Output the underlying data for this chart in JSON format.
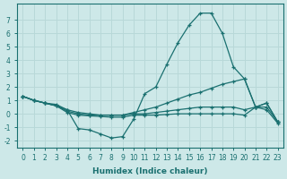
{
  "xlabel": "Humidex (Indice chaleur)",
  "bg_color": "#cde8e8",
  "grid_color": "#b8d8d8",
  "line_color": "#1a7070",
  "xlim": [
    -0.5,
    23.5
  ],
  "ylim": [
    -2.5,
    8.2
  ],
  "yticks": [
    -2,
    -1,
    0,
    1,
    2,
    3,
    4,
    5,
    6,
    7
  ],
  "xticks": [
    0,
    1,
    2,
    3,
    4,
    5,
    6,
    7,
    8,
    9,
    10,
    11,
    12,
    13,
    14,
    15,
    16,
    17,
    18,
    19,
    20,
    21,
    22,
    23
  ],
  "lines": [
    {
      "x": [
        0,
        1,
        2,
        3,
        4,
        5,
        6,
        7,
        8,
        9,
        10,
        11,
        12,
        13,
        14,
        15,
        16,
        17,
        18,
        19,
        20,
        21,
        22,
        23
      ],
      "y": [
        1.3,
        1.0,
        0.8,
        0.7,
        0.3,
        -1.1,
        -1.2,
        -1.5,
        -1.8,
        -1.7,
        -0.4,
        1.5,
        2.0,
        3.7,
        5.3,
        6.6,
        7.5,
        7.5,
        6.0,
        3.5,
        2.6,
        0.5,
        0.8,
        -0.6
      ]
    },
    {
      "x": [
        0,
        1,
        2,
        3,
        4,
        5,
        6,
        7,
        8,
        9,
        10,
        11,
        12,
        13,
        14,
        15,
        16,
        17,
        18,
        19,
        20,
        21,
        22,
        23
      ],
      "y": [
        1.3,
        1.0,
        0.8,
        0.6,
        0.3,
        0.1,
        0.0,
        -0.1,
        -0.1,
        -0.1,
        0.1,
        0.3,
        0.5,
        0.8,
        1.1,
        1.4,
        1.6,
        1.9,
        2.2,
        2.4,
        2.6,
        0.5,
        0.8,
        -0.6
      ]
    },
    {
      "x": [
        0,
        1,
        2,
        3,
        4,
        5,
        6,
        7,
        8,
        9,
        10,
        11,
        12,
        13,
        14,
        15,
        16,
        17,
        18,
        19,
        20,
        21,
        22,
        23
      ],
      "y": [
        1.3,
        1.0,
        0.8,
        0.6,
        0.2,
        0.0,
        -0.1,
        -0.1,
        -0.1,
        -0.1,
        0.0,
        0.0,
        0.1,
        0.2,
        0.3,
        0.4,
        0.5,
        0.5,
        0.5,
        0.5,
        0.3,
        0.5,
        0.5,
        -0.6
      ]
    },
    {
      "x": [
        0,
        1,
        2,
        3,
        4,
        5,
        6,
        7,
        8,
        9,
        10,
        11,
        12,
        13,
        14,
        15,
        16,
        17,
        18,
        19,
        20,
        21,
        22,
        23
      ],
      "y": [
        1.3,
        1.0,
        0.8,
        0.6,
        0.1,
        -0.1,
        -0.15,
        -0.2,
        -0.25,
        -0.25,
        -0.1,
        -0.1,
        -0.1,
        -0.05,
        0.0,
        0.0,
        0.0,
        0.0,
        0.0,
        0.0,
        -0.1,
        0.5,
        0.3,
        -0.7
      ]
    }
  ]
}
